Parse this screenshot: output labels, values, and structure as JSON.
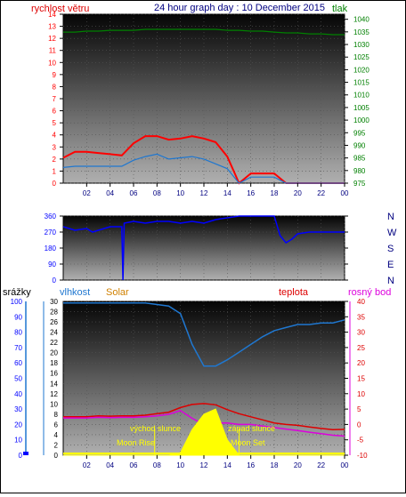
{
  "header": {
    "left_label": "rychlost větru",
    "title": "24 hour graph day : 10 December 2015",
    "right_label": "tlak"
  },
  "colors": {
    "wind": "#ff0000",
    "wind_avg": "#1f77d0",
    "pressure": "#008000",
    "direction": "#0000ff",
    "rain": "#0000ff",
    "humidity": "#1f77d0",
    "solar": "#ffff00",
    "temperature": "#dd0000",
    "dewpoint": "#dd00dd",
    "title": "#000080",
    "grid": "#555555"
  },
  "x_tick_labels": [
    "02",
    "04",
    "06",
    "08",
    "10",
    "12",
    "14",
    "16",
    "18",
    "20",
    "22",
    "00"
  ],
  "labels": {
    "rain": "srážky",
    "humidity": "vlhkost",
    "solar": "Solar",
    "temperature": "teplota",
    "dewpoint": "rosný bod",
    "sunrise": "východ slunce",
    "sunset": "západ slunce",
    "moonrise": "Moon Rise",
    "moonset": "Moon Set"
  },
  "chart_data": [
    {
      "type": "line",
      "name": "wind-pressure",
      "x": [
        0,
        1,
        2,
        3,
        4,
        5,
        6,
        7,
        8,
        9,
        10,
        11,
        12,
        13,
        14,
        15,
        16,
        17,
        18,
        19,
        20,
        21,
        22,
        23,
        24
      ],
      "x_tick_labels": [
        "02",
        "04",
        "06",
        "08",
        "10",
        "12",
        "14",
        "16",
        "18",
        "20",
        "22",
        "00"
      ],
      "y_left": {
        "label": "rychlost větru",
        "ticks": [
          0,
          1,
          2,
          3,
          4,
          5,
          6,
          7,
          8,
          9,
          10,
          11,
          12,
          13,
          14
        ],
        "range": [
          0,
          14
        ]
      },
      "y_right": {
        "label": "tlak",
        "ticks": [
          975,
          980,
          985,
          990,
          995,
          1000,
          1005,
          1010,
          1015,
          1020,
          1025,
          1030,
          1035,
          1040
        ],
        "range": [
          975,
          1042
        ]
      },
      "series": [
        {
          "name": "wind gust",
          "axis": "left",
          "values": [
            2.1,
            2.6,
            2.6,
            2.5,
            2.4,
            2.3,
            3.3,
            3.9,
            3.9,
            3.6,
            3.7,
            3.9,
            3.7,
            3.4,
            2.2,
            0,
            0.8,
            0.8,
            0.8,
            0,
            0,
            0,
            0,
            0,
            0
          ]
        },
        {
          "name": "wind avg",
          "axis": "left",
          "values": [
            1.3,
            1.4,
            1.4,
            1.4,
            1.4,
            1.4,
            1.9,
            2.2,
            2.4,
            2.0,
            2.1,
            2.2,
            2.0,
            1.6,
            1.2,
            0,
            0.5,
            0.5,
            0.5,
            0,
            0,
            0,
            0,
            0,
            0
          ]
        },
        {
          "name": "pressure",
          "axis": "right",
          "values": [
            1034.9,
            1034.9,
            1035.3,
            1035.3,
            1035.6,
            1035.6,
            1035.6,
            1036.0,
            1036.0,
            1036.0,
            1036.0,
            1036.0,
            1036.0,
            1036.0,
            1035.6,
            1035.6,
            1035.3,
            1035.3,
            1034.9,
            1034.6,
            1034.6,
            1034.2,
            1034.2,
            1033.9,
            1033.9
          ]
        }
      ]
    },
    {
      "type": "line",
      "name": "wind-direction",
      "x_tick_labels": [
        "02",
        "04",
        "06",
        "08",
        "10",
        "12",
        "14",
        "16",
        "18",
        "20",
        "22",
        "00"
      ],
      "y_left": {
        "ticks": [
          0,
          90,
          180,
          270,
          360
        ],
        "range": [
          0,
          360
        ]
      },
      "y_right": {
        "ticks": [
          "N",
          "W",
          "S",
          "E",
          "N"
        ]
      },
      "series": [
        {
          "name": "direction",
          "x": [
            0,
            1,
            2,
            2.5,
            3,
            4,
            5,
            5.1,
            5.2,
            6,
            7,
            8,
            9,
            10,
            11,
            12,
            13,
            14,
            15,
            16,
            17,
            18,
            18.5,
            19,
            19.5,
            20,
            21,
            22,
            23,
            24
          ],
          "values": [
            300,
            280,
            290,
            270,
            280,
            300,
            300,
            0,
            320,
            330,
            320,
            330,
            330,
            320,
            330,
            320,
            340,
            350,
            360,
            360,
            360,
            360,
            250,
            210,
            230,
            260,
            270,
            270,
            270,
            270
          ]
        }
      ]
    },
    {
      "type": "line",
      "name": "humidity-temperature-solar",
      "x_tick_labels": [
        "02",
        "04",
        "06",
        "08",
        "10",
        "12",
        "14",
        "16",
        "18",
        "20",
        "22",
        "00"
      ],
      "y_rain": {
        "label": "srážky",
        "ticks": [
          0,
          10,
          20,
          30,
          40,
          50,
          60,
          70,
          80,
          90,
          100
        ],
        "range": [
          0,
          100
        ]
      },
      "y_humidity": {
        "label": "vlhkost",
        "ticks": [
          0,
          2,
          4,
          6,
          8,
          10,
          12,
          14,
          16,
          18,
          20,
          22,
          24,
          26,
          28,
          30
        ],
        "range": [
          0,
          30
        ]
      },
      "y_temperature": {
        "label": "teplota",
        "ticks": [
          -10,
          -5,
          0,
          5,
          10,
          15,
          20,
          25,
          30,
          35,
          40
        ],
        "range": [
          -10,
          40
        ]
      },
      "series": [
        {
          "name": "humidity",
          "axis": "humidity",
          "values": [
            99,
            99,
            99,
            99,
            99,
            99,
            99,
            99,
            98,
            97,
            92,
            72,
            58,
            58,
            62,
            67,
            72,
            77,
            81,
            83,
            85,
            85,
            86,
            86,
            88
          ]
        },
        {
          "name": "temperature",
          "axis": "temperature",
          "values": [
            2.5,
            2.5,
            2.5,
            2.8,
            2.7,
            2.8,
            2.8,
            3.0,
            3.5,
            4.0,
            5.5,
            6.5,
            6.8,
            6.4,
            4.8,
            3.5,
            2.5,
            1.5,
            0.5,
            0,
            -0.3,
            -0.8,
            -1.3,
            -1.7,
            -1.6
          ]
        },
        {
          "name": "dewpoint",
          "axis": "temperature",
          "values": [
            2.1,
            2.1,
            2.1,
            2.3,
            2.2,
            2.3,
            2.3,
            2.5,
            2.8,
            3.3,
            4.5,
            2.0,
            0.0,
            0.5,
            0.5,
            0.0,
            0.0,
            -0.5,
            -1.0,
            -1.5,
            -2.0,
            -2.5,
            -3.0,
            -3.5,
            -3.8
          ]
        },
        {
          "name": "solar",
          "axis": "humidity",
          "values": [
            0,
            0,
            0,
            0,
            0,
            0,
            0,
            0,
            0,
            0,
            0.5,
            5,
            8,
            9,
            3,
            0,
            0,
            0,
            0,
            0,
            0,
            0,
            0,
            0,
            0
          ]
        }
      ]
    }
  ]
}
